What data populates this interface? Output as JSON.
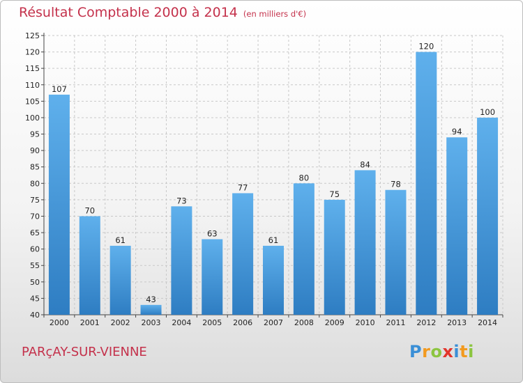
{
  "header": {
    "title": "Résultat Comptable 2000 à 2014",
    "subtitle": "(en milliers d'€)"
  },
  "footer": {
    "commune": "PARçAY-SUR-VIENNE",
    "logo": {
      "text": "Proxiti",
      "letters": [
        {
          "char": "P",
          "color": "#3a8fd6"
        },
        {
          "char": "r",
          "color": "#f29a1f"
        },
        {
          "char": "o",
          "color": "#8cc540"
        },
        {
          "char": "x",
          "color": "#e2342b"
        },
        {
          "char": "i",
          "color": "#3a8fd6"
        },
        {
          "char": "t",
          "color": "#f29a1f"
        },
        {
          "char": "i",
          "color": "#8cc540"
        }
      ]
    }
  },
  "colors": {
    "bar_top": "#5fb0ec",
    "bar_bottom": "#2e7dc2",
    "title": "#c4314b",
    "grid": "#c8c8c8"
  },
  "chart_data": {
    "type": "bar",
    "title": "Résultat Comptable 2000 à 2014",
    "subtitle": "(en milliers d'€)",
    "categories": [
      "2000",
      "2001",
      "2002",
      "2003",
      "2004",
      "2005",
      "2006",
      "2007",
      "2008",
      "2009",
      "2010",
      "2011",
      "2012",
      "2013",
      "2014"
    ],
    "values": [
      107,
      70,
      61,
      43,
      73,
      63,
      77,
      61,
      80,
      75,
      84,
      78,
      120,
      94,
      100
    ],
    "ylim": [
      40,
      125
    ],
    "ytick_step": 5,
    "grid": true,
    "data_labels": true
  }
}
